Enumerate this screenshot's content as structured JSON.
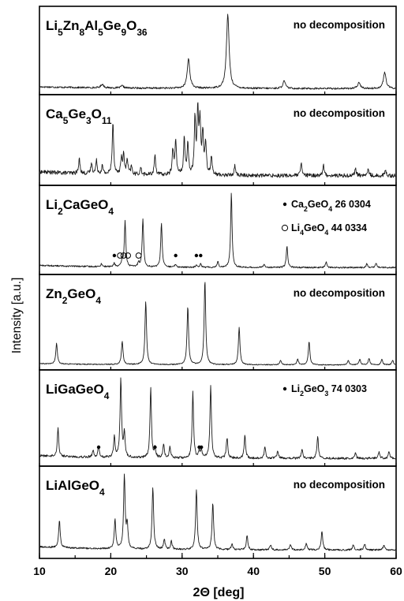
{
  "chart_data": {
    "type": "line",
    "xlabel": "2Θ [deg]",
    "ylabel": "Intensity [a.u.]",
    "xlim": [
      10,
      60
    ],
    "xticks": [
      "10",
      "20",
      "30",
      "40",
      "50",
      "60"
    ],
    "grid": false,
    "panels": [
      {
        "sample": [
          {
            "t": "Li"
          },
          {
            "t": "5",
            "s": 1
          },
          {
            "t": "Zn"
          },
          {
            "t": "8",
            "s": 1
          },
          {
            "t": "Al"
          },
          {
            "t": "5",
            "s": 1
          },
          {
            "t": "Ge"
          },
          {
            "t": "9",
            "s": 1
          },
          {
            "t": "O"
          },
          {
            "t": "36",
            "s": 1
          }
        ],
        "note": "no decomposition",
        "baseline": 0.04,
        "noise": 0.012,
        "width": 0.22,
        "peaks": [
          [
            18.8,
            0.05
          ],
          [
            21.6,
            0.03
          ],
          [
            30.9,
            0.4
          ],
          [
            36.4,
            1.0
          ],
          [
            44.3,
            0.1
          ],
          [
            54.8,
            0.08
          ],
          [
            58.4,
            0.22
          ]
        ]
      },
      {
        "sample": [
          {
            "t": "Ca"
          },
          {
            "t": "5",
            "s": 1
          },
          {
            "t": "Ge"
          },
          {
            "t": "3",
            "s": 1
          },
          {
            "t": "O"
          },
          {
            "t": "11",
            "s": 1
          }
        ],
        "note": "no decomposition",
        "baseline": 0.1,
        "noise": 0.03,
        "width": 0.12,
        "peaks": [
          [
            15.6,
            0.22
          ],
          [
            17.3,
            0.16
          ],
          [
            18.0,
            0.2
          ],
          [
            18.8,
            0.12
          ],
          [
            20.3,
            0.8
          ],
          [
            21.5,
            0.25
          ],
          [
            21.8,
            0.28
          ],
          [
            22.3,
            0.22
          ],
          [
            22.9,
            0.12
          ],
          [
            24.2,
            0.1
          ],
          [
            26.2,
            0.3
          ],
          [
            28.7,
            0.38
          ],
          [
            29.1,
            0.52
          ],
          [
            30.3,
            0.55
          ],
          [
            30.8,
            0.45
          ],
          [
            31.8,
            0.85
          ],
          [
            32.2,
            0.95
          ],
          [
            32.5,
            0.8
          ],
          [
            32.9,
            0.62
          ],
          [
            33.3,
            0.5
          ],
          [
            34.1,
            0.28
          ],
          [
            37.4,
            0.15
          ],
          [
            46.7,
            0.18
          ],
          [
            49.8,
            0.16
          ],
          [
            54.3,
            0.12
          ],
          [
            56.1,
            0.1
          ],
          [
            58.5,
            0.08
          ]
        ]
      },
      {
        "sample": [
          {
            "t": "Li"
          },
          {
            "t": "2",
            "s": 1
          },
          {
            "t": "CaGeO"
          },
          {
            "t": "4",
            "s": 1
          }
        ],
        "legend": [
          {
            "marker": "filled",
            "parts": [
              {
                "t": "Ca"
              },
              {
                "t": "2",
                "s": 1
              },
              {
                "t": "GeO"
              },
              {
                "t": "4",
                "s": 1
              },
              {
                "t": " 26 0304"
              }
            ]
          },
          {
            "marker": "open",
            "parts": [
              {
                "t": "Li"
              },
              {
                "t": "4",
                "s": 1
              },
              {
                "t": "GeO"
              },
              {
                "t": "4",
                "s": 1
              },
              {
                "t": " 44 0334"
              }
            ]
          }
        ],
        "baseline": 0.05,
        "noise": 0.01,
        "width": 0.12,
        "peaks": [
          [
            18.7,
            0.04
          ],
          [
            20.5,
            0.05
          ],
          [
            21.6,
            0.08
          ],
          [
            22.0,
            0.62
          ],
          [
            23.9,
            0.06
          ],
          [
            24.5,
            0.65
          ],
          [
            27.1,
            0.6
          ],
          [
            29.1,
            0.04
          ],
          [
            32.0,
            0.04
          ],
          [
            32.6,
            0.05
          ],
          [
            35.0,
            0.08
          ],
          [
            36.9,
            1.0
          ],
          [
            41.5,
            0.05
          ],
          [
            44.7,
            0.3
          ],
          [
            50.2,
            0.08
          ],
          [
            55.9,
            0.05
          ],
          [
            57.2,
            0.06
          ]
        ],
        "markers": [
          [
            20.5,
            "filled"
          ],
          [
            21.3,
            "open"
          ],
          [
            21.8,
            "open"
          ],
          [
            22.4,
            "open"
          ],
          [
            23.9,
            "open"
          ],
          [
            29.1,
            "filled"
          ],
          [
            32.0,
            "filled"
          ],
          [
            32.6,
            "filled"
          ]
        ]
      },
      {
        "sample": [
          {
            "t": "Zn"
          },
          {
            "t": "2",
            "s": 1
          },
          {
            "t": "GeO"
          },
          {
            "t": "4",
            "s": 1
          }
        ],
        "note": "no decomposition",
        "baseline": 0.02,
        "noise": 0.005,
        "width": 0.13,
        "peaks": [
          [
            12.4,
            0.22
          ],
          [
            21.6,
            0.25
          ],
          [
            24.9,
            0.68
          ],
          [
            30.8,
            0.62
          ],
          [
            33.2,
            0.9
          ],
          [
            38.0,
            0.4
          ],
          [
            43.8,
            0.05
          ],
          [
            46.2,
            0.06
          ],
          [
            47.8,
            0.25
          ],
          [
            53.3,
            0.05
          ],
          [
            54.9,
            0.06
          ],
          [
            56.2,
            0.07
          ],
          [
            58.0,
            0.06
          ],
          [
            59.5,
            0.05
          ]
        ]
      },
      {
        "sample": [
          {
            "t": "LiGaGeO"
          },
          {
            "t": "4",
            "s": 1
          }
        ],
        "legend": [
          {
            "marker": "filled",
            "parts": [
              {
                "t": "Li"
              },
              {
                "t": "2",
                "s": 1
              },
              {
                "t": "GeO"
              },
              {
                "t": "3",
                "s": 1
              },
              {
                "t": " 74 0303"
              }
            ]
          }
        ],
        "baseline": 0.04,
        "noise": 0.01,
        "width": 0.12,
        "peaks": [
          [
            12.6,
            0.25
          ],
          [
            17.5,
            0.06
          ],
          [
            18.3,
            0.1
          ],
          [
            20.5,
            0.18
          ],
          [
            21.4,
            0.7
          ],
          [
            21.9,
            0.22
          ],
          [
            25.6,
            0.62
          ],
          [
            26.2,
            0.08
          ],
          [
            27.4,
            0.12
          ],
          [
            28.3,
            0.1
          ],
          [
            31.5,
            0.58
          ],
          [
            32.4,
            0.06
          ],
          [
            32.7,
            0.07
          ],
          [
            34.0,
            0.65
          ],
          [
            36.3,
            0.18
          ],
          [
            38.8,
            0.2
          ],
          [
            41.6,
            0.1
          ],
          [
            43.4,
            0.06
          ],
          [
            46.8,
            0.08
          ],
          [
            49.0,
            0.2
          ],
          [
            54.3,
            0.05
          ],
          [
            57.6,
            0.06
          ],
          [
            59.0,
            0.06
          ]
        ],
        "markers": [
          [
            18.3,
            "filled"
          ],
          [
            26.2,
            "filled"
          ],
          [
            32.4,
            "filled"
          ],
          [
            32.7,
            "filled"
          ]
        ]
      },
      {
        "sample": [
          {
            "t": "LiAlGeO"
          },
          {
            "t": "4",
            "s": 1
          }
        ],
        "note": "no decomposition",
        "baseline": 0.05,
        "noise": 0.008,
        "width": 0.13,
        "peaks": [
          [
            12.8,
            0.26
          ],
          [
            20.6,
            0.28
          ],
          [
            21.9,
            0.7
          ],
          [
            22.3,
            0.22
          ],
          [
            25.9,
            0.6
          ],
          [
            27.5,
            0.1
          ],
          [
            28.5,
            0.08
          ],
          [
            32.0,
            0.58
          ],
          [
            34.3,
            0.45
          ],
          [
            37.0,
            0.06
          ],
          [
            39.1,
            0.14
          ],
          [
            42.4,
            0.05
          ],
          [
            45.2,
            0.05
          ],
          [
            47.4,
            0.06
          ],
          [
            49.6,
            0.18
          ],
          [
            54.0,
            0.05
          ],
          [
            55.6,
            0.06
          ],
          [
            58.3,
            0.05
          ]
        ]
      }
    ]
  }
}
